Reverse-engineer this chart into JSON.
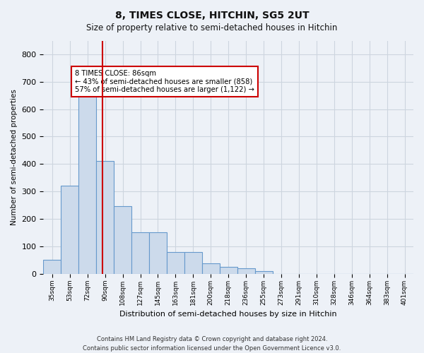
{
  "title": "8, TIMES CLOSE, HITCHIN, SG5 2UT",
  "subtitle": "Size of property relative to semi-detached houses in Hitchin",
  "xlabel": "Distribution of semi-detached houses by size in Hitchin",
  "ylabel": "Number of semi-detached properties",
  "footer_line1": "Contains HM Land Registry data © Crown copyright and database right 2024.",
  "footer_line2": "Contains public sector information licensed under the Open Government Licence v3.0.",
  "annotation_title": "8 TIMES CLOSE: 86sqm",
  "annotation_line1": "← 43% of semi-detached houses are smaller (858)",
  "annotation_line2": "57% of semi-detached houses are larger (1,122) →",
  "bar_color": "#ccdaeb",
  "bar_edge_color": "#6699cc",
  "vline_color": "#cc0000",
  "vline_x": 86,
  "categories": [
    "35sqm",
    "53sqm",
    "72sqm",
    "90sqm",
    "108sqm",
    "127sqm",
    "145sqm",
    "163sqm",
    "181sqm",
    "200sqm",
    "218sqm",
    "236sqm",
    "255sqm",
    "273sqm",
    "291sqm",
    "310sqm",
    "328sqm",
    "346sqm",
    "364sqm",
    "383sqm",
    "401sqm"
  ],
  "bin_edges": [
    26,
    44,
    62,
    80,
    98,
    116,
    134,
    152,
    170,
    188,
    206,
    224,
    242,
    260,
    278,
    296,
    314,
    332,
    350,
    368,
    386,
    404
  ],
  "bar_heights": [
    50,
    320,
    660,
    410,
    247,
    150,
    150,
    80,
    80,
    38,
    25,
    20,
    10,
    0,
    0,
    0,
    0,
    0,
    0,
    0,
    0
  ],
  "ylim": [
    0,
    850
  ],
  "yticks": [
    0,
    100,
    200,
    300,
    400,
    500,
    600,
    700,
    800
  ],
  "grid_color": "#cdd5df",
  "bg_color": "#edf1f7",
  "annotation_box_color": "#ffffff"
}
